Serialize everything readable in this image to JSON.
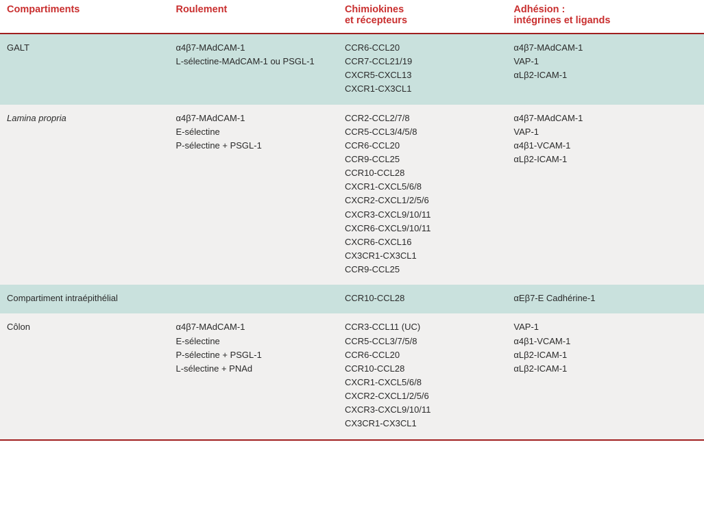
{
  "columns": [
    {
      "label": "Compartiments",
      "sub": ""
    },
    {
      "label": "Roulement",
      "sub": ""
    },
    {
      "label": "Chimiokines",
      "sub": "et récepteurs"
    },
    {
      "label": "Adhésion :",
      "sub": "intégrines et ligands"
    }
  ],
  "rows": [
    {
      "shade": true,
      "italic": false,
      "compartment": "GALT",
      "roulement": [
        "α4β7-MAdCAM-1",
        "L-sélectine-MAdCAM-1 ou PSGL-1"
      ],
      "chimiokines": [
        "CCR6-CCL20",
        "CCR7-CCL21/19",
        "CXCR5-CXCL13",
        "CXCR1-CX3CL1"
      ],
      "adhesion": [
        "α4β7-MAdCAM-1",
        "VAP-1",
        "αLβ2-ICAM-1"
      ]
    },
    {
      "shade": false,
      "italic": true,
      "compartment": "Lamina propria",
      "roulement": [
        "α4β7-MAdCAM-1",
        "E-sélectine",
        "P-sélectine + PSGL-1"
      ],
      "chimiokines": [
        "CCR2-CCL2/7/8",
        "CCR5-CCL3/4/5/8",
        "CCR6-CCL20",
        "CCR9-CCL25",
        "CCR10-CCL28",
        "CXCR1-CXCL5/6/8",
        "CXCR2-CXCL1/2/5/6",
        "CXCR3-CXCL9/10/11",
        "CXCR6-CXCL9/10/11",
        "CXCR6-CXCL16",
        "CX3CR1-CX3CL1",
        "CCR9-CCL25"
      ],
      "adhesion": [
        "α4β7-MAdCAM-1",
        "VAP-1",
        "α4β1-VCAM-1",
        "αLβ2-ICAM-1"
      ]
    },
    {
      "shade": true,
      "italic": false,
      "compartment": "Compartiment intraépithélial",
      "roulement": [],
      "chimiokines": [
        "CCR10-CCL28"
      ],
      "adhesion": [
        "αEβ7-E Cadhérine-1"
      ]
    },
    {
      "shade": false,
      "italic": false,
      "compartment": "Côlon",
      "roulement": [
        "α4β7-MAdCAM-1",
        "E-sélectine",
        "P-sélectine + PSGL-1",
        "L-sélectine + PNAd"
      ],
      "chimiokines": [
        "CCR3-CCL11 (UC)",
        "CCR5-CCL3/7/5/8",
        "CCR6-CCL20",
        "CCR10-CCL28",
        "CXCR1-CXCL5/6/8",
        "CXCR2-CXCL1/2/5/6",
        "CXCR3-CXCL9/10/11",
        "CX3CR1-CX3CL1"
      ],
      "adhesion": [
        "VAP-1",
        "α4β1-VCAM-1",
        "αLβ2-ICAM-1",
        "αLβ2-ICAM-1"
      ]
    }
  ],
  "styling": {
    "header_color": "#c92f2f",
    "header_border": "#a01f1f",
    "shade_bg": "#c9e1dd",
    "plain_bg": "#f1f0ef",
    "font_family": "Trebuchet MS",
    "header_fontsize_pt": 14.5,
    "body_fontsize_pt": 13,
    "line_height": 1.55
  }
}
